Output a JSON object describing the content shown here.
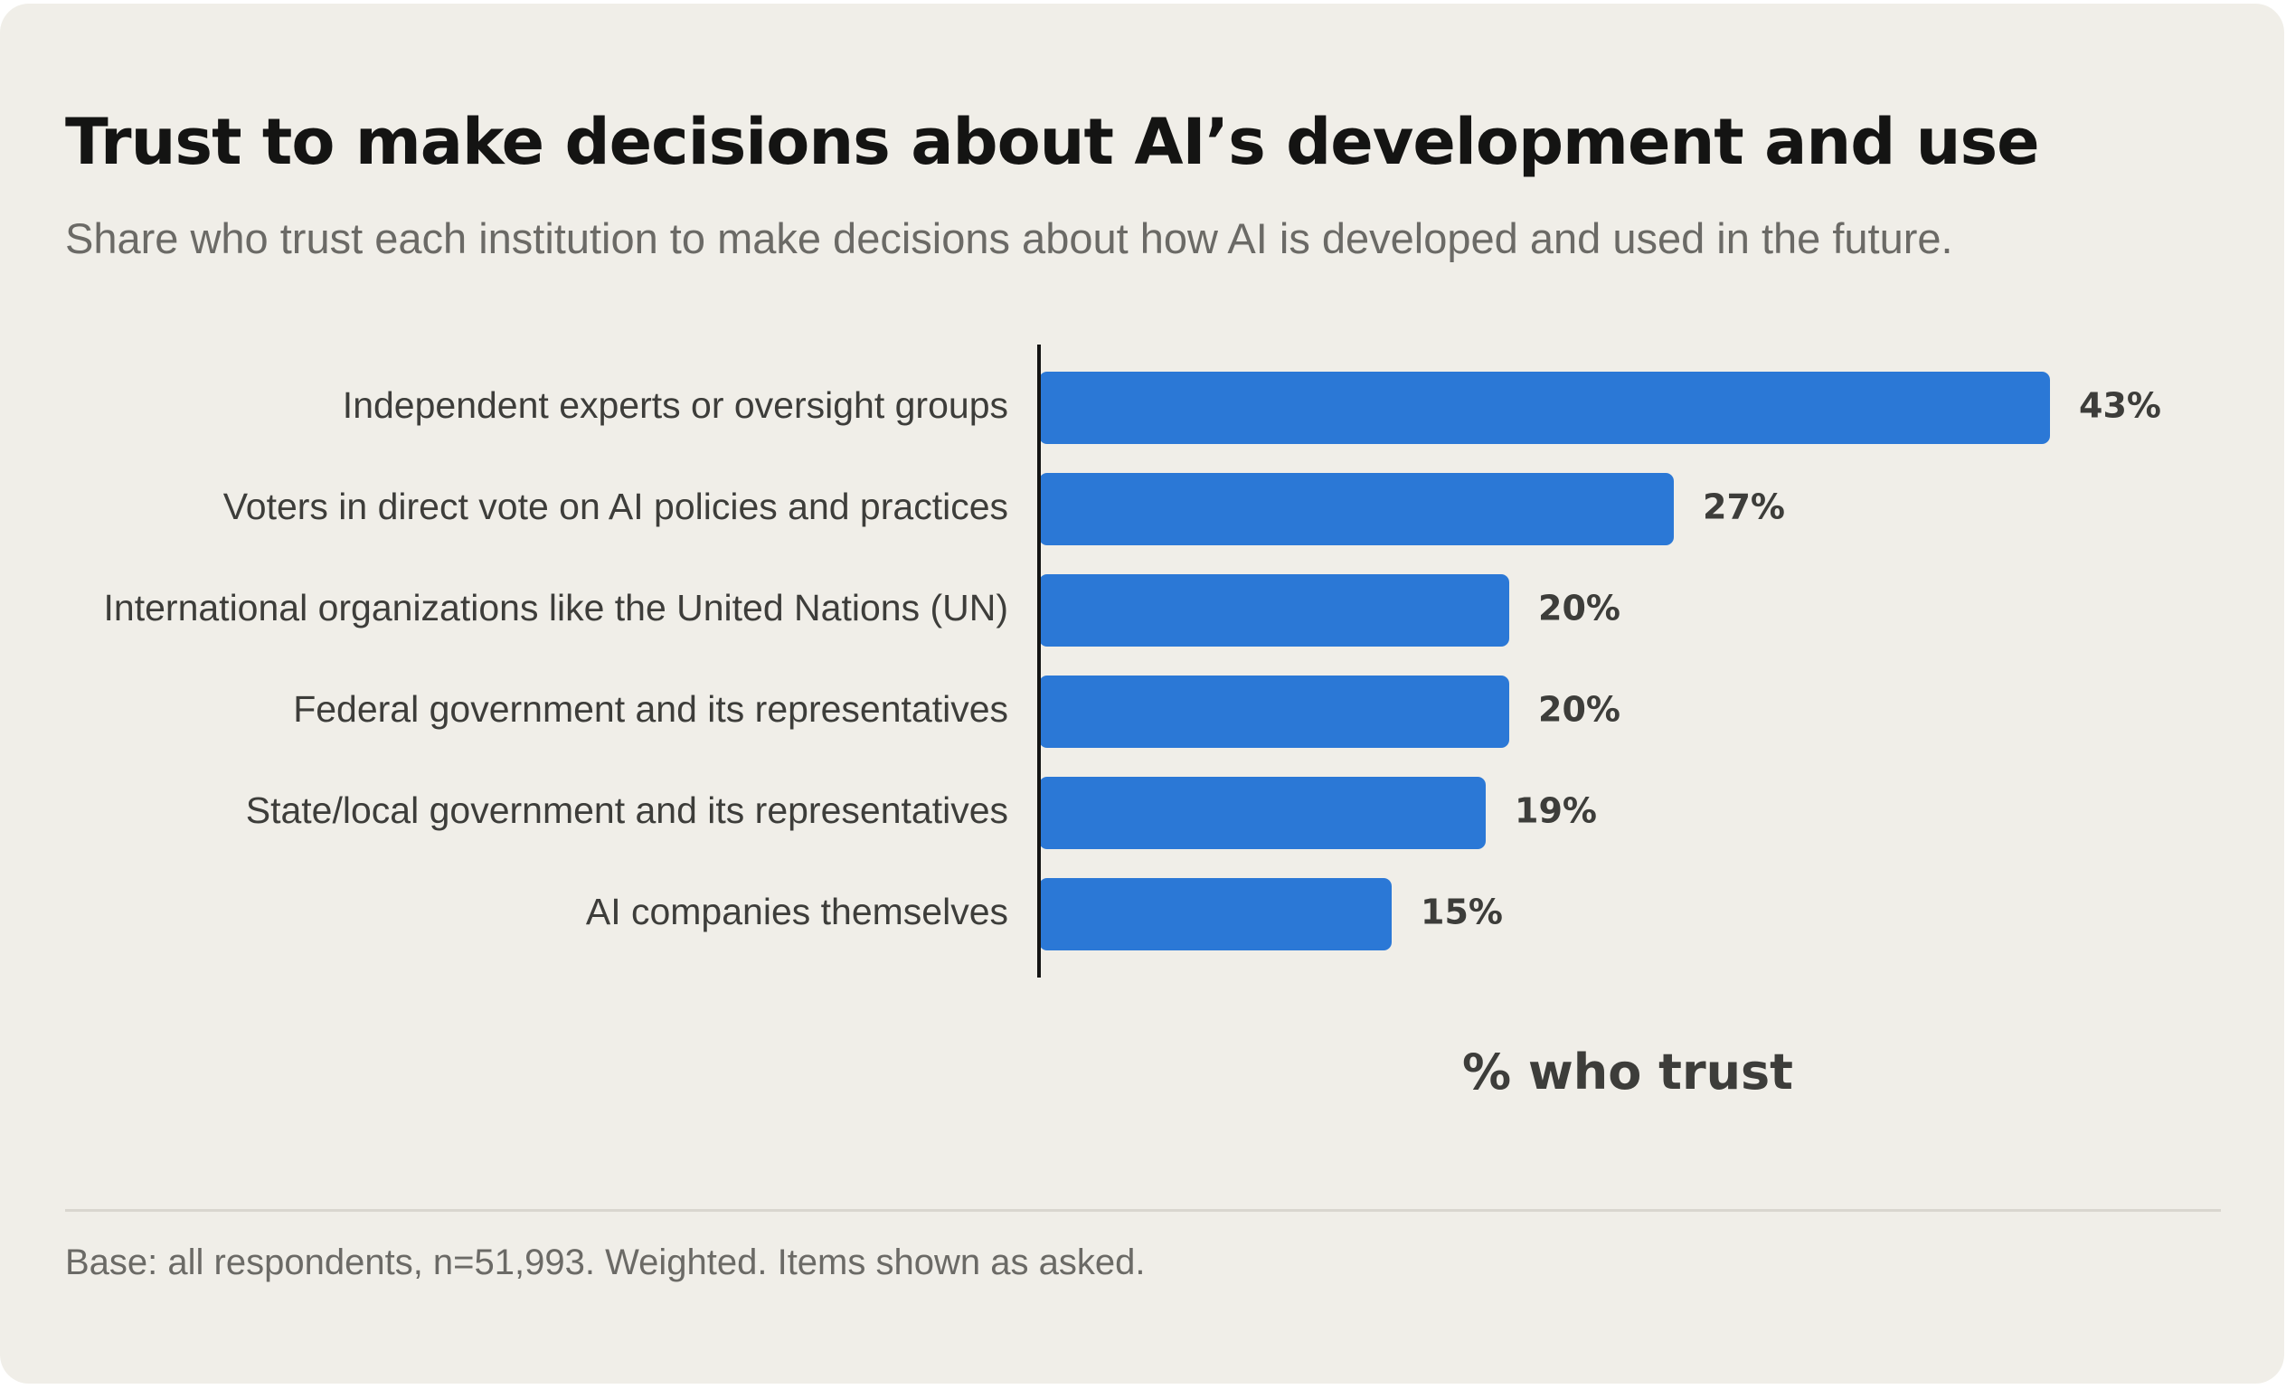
{
  "chart_data": {
    "type": "bar",
    "orientation": "horizontal",
    "title": "Trust to make decisions about AI’s development and use",
    "subtitle": "Share who trust each institution to make decisions about how AI is developed and used in the future.",
    "categories": [
      "Independent experts or oversight groups",
      "Voters in direct vote on AI policies and practices",
      "International organizations like the United Nations (UN)",
      "Federal government and its representatives",
      "State/local government and its representatives",
      "AI companies themselves"
    ],
    "values": [
      43,
      27,
      20,
      20,
      19,
      15
    ],
    "value_labels": [
      "43%",
      "27%",
      "20%",
      "20%",
      "19%",
      "15%"
    ],
    "xlabel": "% who trust",
    "ylabel": "",
    "xlim": [
      0,
      43
    ],
    "grid": false,
    "legend": "none",
    "bar_color": "#2b78d6"
  },
  "footnote": "Base: all respondents, n=51,993. Weighted. Items shown as asked.",
  "colors": {
    "background": "#f0eee8",
    "bar": "#2b78d6",
    "text": "#3d3d3a",
    "title": "#141413",
    "muted": "#6b6a66"
  }
}
